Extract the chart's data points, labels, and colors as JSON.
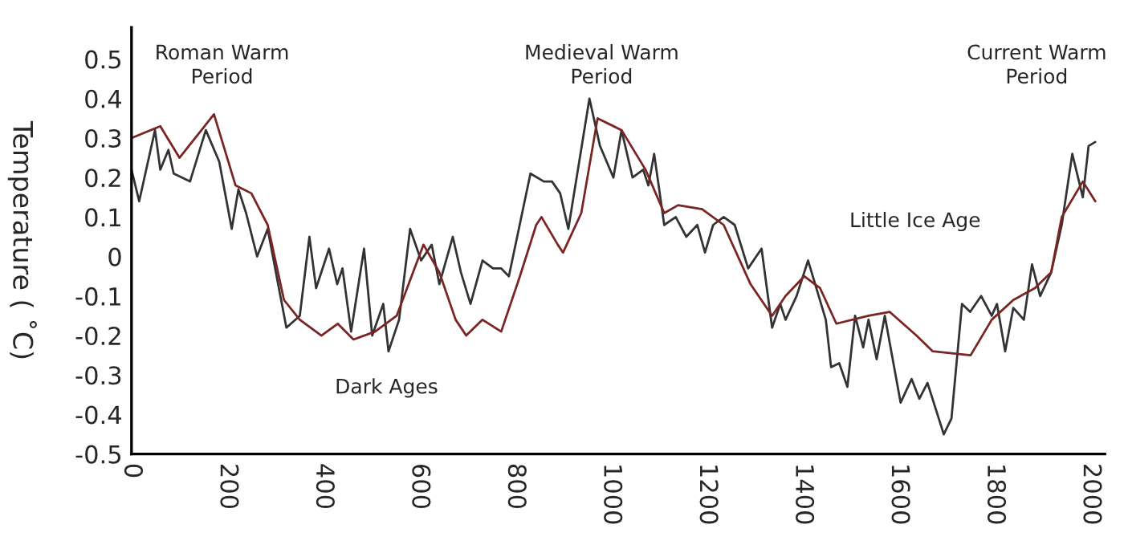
{
  "chart_data": {
    "type": "line",
    "ylabel": "Temperature ( ˚C)",
    "xlim": [
      0,
      2030
    ],
    "ylim": [
      -0.5,
      0.58
    ],
    "xticks": [
      0,
      200,
      400,
      600,
      800,
      1000,
      1200,
      1400,
      1600,
      1800,
      2000
    ],
    "yticks": [
      -0.5,
      -0.4,
      -0.3,
      -0.2,
      -0.1,
      0,
      0.1,
      0.2,
      0.3,
      0.4,
      0.5
    ],
    "grid": false,
    "legend": false,
    "marker": "none",
    "line_style": "solid",
    "series": [
      {
        "color": "#333333",
        "x": [
          0,
          16,
          49,
          60,
          77,
          88,
          122,
          155,
          183,
          209,
          223,
          239,
          262,
          284,
          323,
          351,
          371,
          385,
          412,
          429,
          440,
          458,
          485,
          502,
          525,
          536,
          558,
          581,
          604,
          626,
          642,
          670,
          687,
          707,
          732,
          754,
          771,
          787,
          832,
          860,
          877,
          894,
          911,
          955,
          977,
          1005,
          1022,
          1045,
          1067,
          1078,
          1090,
          1111,
          1135,
          1157,
          1180,
          1196,
          1213,
          1235,
          1258,
          1286,
          1314,
          1336,
          1353,
          1364,
          1387,
          1411,
          1448,
          1459,
          1476,
          1493,
          1509,
          1526,
          1537,
          1554,
          1571,
          1604,
          1627,
          1643,
          1660,
          1694,
          1710,
          1732,
          1749,
          1772,
          1794,
          1805,
          1822,
          1839,
          1861,
          1878,
          1895,
          1918,
          1940,
          1962,
          1984,
          1996,
          2010
        ],
        "values": [
          0.22,
          0.14,
          0.32,
          0.22,
          0.27,
          0.21,
          0.19,
          0.32,
          0.24,
          0.07,
          0.17,
          0.11,
          0.0,
          0.07,
          -0.18,
          -0.15,
          0.05,
          -0.08,
          0.02,
          -0.07,
          -0.03,
          -0.19,
          0.02,
          -0.2,
          -0.12,
          -0.24,
          -0.16,
          0.07,
          -0.01,
          0.03,
          -0.07,
          0.05,
          -0.04,
          -0.12,
          -0.01,
          -0.03,
          -0.03,
          -0.05,
          0.21,
          0.19,
          0.19,
          0.16,
          0.07,
          0.4,
          0.28,
          0.2,
          0.32,
          0.2,
          0.22,
          0.18,
          0.26,
          0.08,
          0.1,
          0.05,
          0.08,
          0.01,
          0.08,
          0.1,
          0.08,
          -0.03,
          0.02,
          -0.18,
          -0.12,
          -0.16,
          -0.1,
          -0.01,
          -0.16,
          -0.28,
          -0.27,
          -0.33,
          -0.15,
          -0.23,
          -0.16,
          -0.26,
          -0.15,
          -0.37,
          -0.31,
          -0.36,
          -0.32,
          -0.45,
          -0.41,
          -0.12,
          -0.14,
          -0.1,
          -0.15,
          -0.12,
          -0.24,
          -0.13,
          -0.16,
          -0.02,
          -0.1,
          -0.04,
          0.08,
          0.26,
          0.15,
          0.28,
          0.29
        ]
      },
      {
        "color": "#7a2424",
        "x": [
          0,
          60,
          100,
          172,
          217,
          250,
          284,
          318,
          351,
          396,
          430,
          463,
          508,
          553,
          609,
          642,
          676,
          698,
          732,
          771,
          810,
          844,
          855,
          889,
          900,
          938,
          972,
          1022,
          1072,
          1111,
          1140,
          1190,
          1235,
          1291,
          1336,
          1364,
          1403,
          1436,
          1470,
          1537,
          1581,
          1637,
          1671,
          1750,
          1794,
          1839,
          1884,
          1918,
          1940,
          1984,
          2010
        ],
        "values": [
          0.3,
          0.33,
          0.25,
          0.36,
          0.18,
          0.16,
          0.08,
          -0.11,
          -0.16,
          -0.2,
          -0.17,
          -0.21,
          -0.19,
          -0.15,
          0.03,
          -0.04,
          -0.16,
          -0.2,
          -0.16,
          -0.19,
          -0.05,
          0.08,
          0.1,
          0.03,
          0.01,
          0.11,
          0.35,
          0.32,
          0.22,
          0.11,
          0.13,
          0.12,
          0.08,
          -0.07,
          -0.15,
          -0.1,
          -0.05,
          -0.08,
          -0.17,
          -0.15,
          -0.14,
          -0.2,
          -0.24,
          -0.25,
          -0.16,
          -0.11,
          -0.08,
          -0.04,
          0.1,
          0.19,
          0.14
        ]
      }
    ],
    "annotations": [
      "Roman Warm\nPeriod",
      "Medieval Warm\nPeriod",
      "Current Warm\nPeriod",
      "Dark Ages",
      "Little Ice Age"
    ]
  }
}
